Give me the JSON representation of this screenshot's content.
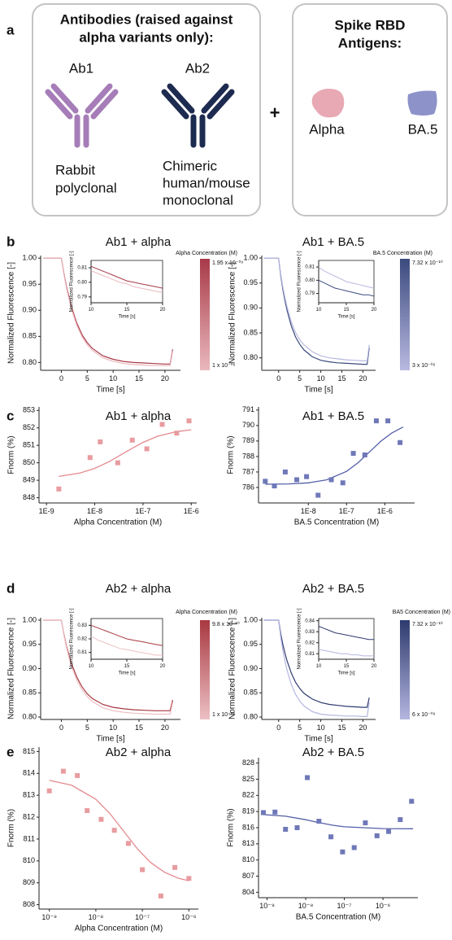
{
  "panel_a": {
    "label": "a",
    "antibodies": {
      "title_lines": [
        "Antibodies (raised against",
        "alpha variants only):"
      ],
      "items": [
        {
          "name": "Ab1",
          "description_lines": [
            "Rabbit",
            "polyclonal"
          ]
        },
        {
          "name": "Ab2",
          "description_lines": [
            "Chimeric",
            "human/mouse",
            "monoclonal"
          ]
        }
      ]
    },
    "plus": "+",
    "antigens": {
      "title_lines": [
        "Spike RBD",
        "Antigens:"
      ],
      "items": [
        "Alpha",
        "BA.5"
      ]
    }
  },
  "panel_labels": [
    "b",
    "c",
    "d",
    "e"
  ],
  "chart_data": [
    {
      "type": "line",
      "title": "Ab1 + alpha",
      "xlabel": "Time [s]",
      "ylabel": "Normalized Fluorescence [-]",
      "x": [
        -3.5,
        -2,
        0,
        0.5,
        1,
        1.5,
        2,
        3,
        4,
        5,
        6,
        8,
        10,
        12,
        14,
        16,
        18,
        20,
        21,
        21.5
      ],
      "series": [
        {
          "name": "1.95 x 10⁻⁰⁹",
          "color": "#a83a48",
          "values": [
            1.0,
            1.0,
            1.0,
            0.97,
            0.945,
            0.925,
            0.905,
            0.875,
            0.853,
            0.838,
            0.827,
            0.813,
            0.806,
            0.802,
            0.8,
            0.799,
            0.798,
            0.797,
            0.797,
            0.825
          ]
        },
        {
          "name": "1 x 10⁻⁰⁶",
          "color": "#eab8bd",
          "values": [
            1.0,
            1.0,
            1.0,
            0.968,
            0.942,
            0.921,
            0.901,
            0.871,
            0.849,
            0.834,
            0.823,
            0.809,
            0.802,
            0.798,
            0.796,
            0.795,
            0.794,
            0.794,
            0.794,
            0.822
          ]
        }
      ],
      "xlim": [
        -4,
        23
      ],
      "ylim": [
        0.785,
        1.005
      ],
      "xticks": [
        0,
        5,
        10,
        15,
        20
      ],
      "yticks": [
        {
          "value": 0.8,
          "label": "0.80"
        },
        0.85,
        {
          "value": 0.9,
          "label": "0.90"
        },
        0.95,
        {
          "value": 1,
          "label": "1.00"
        }
      ],
      "colorbar_title": "Alpha Concentration (M)",
      "inset": {
        "xlabel": "Time [s]",
        "ylabel": "Normalized Fluorescence [-]",
        "x": [
          10,
          11,
          12,
          13,
          14,
          15,
          16,
          17,
          18,
          19,
          20
        ],
        "series": [
          {
            "color": "#a83a48",
            "values": [
              0.811,
              0.809,
              0.807,
              0.805,
              0.803,
              0.801,
              0.8,
              0.799,
              0.798,
              0.797,
              0.796
            ]
          },
          {
            "color": "#eab8bd",
            "values": [
              0.808,
              0.806,
              0.804,
              0.802,
              0.8,
              0.799,
              0.797,
              0.796,
              0.795,
              0.794,
              0.793
            ]
          }
        ],
        "xlim": [
          10,
          20
        ],
        "ylim": [
          0.786,
          0.815
        ],
        "xticks": [
          10,
          15,
          20
        ],
        "yticks": [
          0.79,
          {
            "value": 0.8,
            "label": "0.80"
          },
          0.81
        ]
      }
    },
    {
      "type": "line",
      "title": "Ab1 + BA.5",
      "xlabel": "Time [s]",
      "ylabel": "Normalized Fluorescence [-]",
      "x": [
        -3.5,
        -2,
        0,
        0.5,
        1,
        1.5,
        2,
        3,
        4,
        5,
        6,
        8,
        10,
        12,
        14,
        16,
        18,
        20,
        21,
        21.5
      ],
      "series": [
        {
          "name": "7.32 x 10⁻¹⁰",
          "color": "#3b4a7e",
          "values": [
            1.0,
            1.0,
            1.0,
            0.965,
            0.937,
            0.915,
            0.895,
            0.864,
            0.842,
            0.827,
            0.816,
            0.802,
            0.795,
            0.792,
            0.79,
            0.789,
            0.788,
            0.787,
            0.787,
            0.82
          ]
        },
        {
          "name": "3 x 10⁻⁰⁶",
          "color": "#b8b9e0",
          "values": [
            1.0,
            1.0,
            1.0,
            0.968,
            0.942,
            0.921,
            0.902,
            0.872,
            0.851,
            0.836,
            0.826,
            0.812,
            0.804,
            0.8,
            0.798,
            0.796,
            0.795,
            0.794,
            0.794,
            0.826
          ]
        }
      ],
      "xlim": [
        -4,
        23
      ],
      "ylim": [
        0.775,
        1.005
      ],
      "xticks": [
        0,
        5,
        10,
        15,
        20
      ],
      "yticks": [
        {
          "value": 0.8,
          "label": "0.80"
        },
        0.85,
        {
          "value": 0.9,
          "label": "0.90"
        },
        0.95,
        {
          "value": 1,
          "label": "1.00"
        }
      ],
      "colorbar_title": "BA.5 Concentration (M)",
      "inset": {
        "xlabel": "Time [s]",
        "ylabel": "Normalized Fluorescence [-]",
        "x": [
          10,
          11,
          12,
          13,
          14,
          15,
          16,
          17,
          18,
          19,
          20
        ],
        "series": [
          {
            "color": "#3b4a7e",
            "values": [
              0.8,
              0.798,
              0.796,
              0.794,
              0.793,
              0.792,
              0.791,
              0.79,
              0.789,
              0.789,
              0.788
            ]
          },
          {
            "color": "#b8b9e0",
            "values": [
              0.81,
              0.807,
              0.805,
              0.803,
              0.801,
              0.799,
              0.798,
              0.797,
              0.796,
              0.795,
              0.794
            ]
          }
        ],
        "xlim": [
          10,
          20
        ],
        "ylim": [
          0.783,
          0.815
        ],
        "xticks": [
          10,
          15,
          20
        ],
        "yticks": [
          0.79,
          {
            "value": 0.8,
            "label": "0.80"
          },
          0.81
        ]
      }
    },
    {
      "type": "scatter",
      "title": "Ab1 + alpha",
      "xlabel": "Alpha Concentration (M)",
      "ylabel": "Fnorm (%)",
      "xlog": true,
      "xlim": [
        7e-10,
        1.3e-06
      ],
      "ylim": [
        847.7,
        853.2
      ],
      "xticks": [
        {
          "value": 1e-09,
          "label": "1E-9"
        },
        {
          "value": 1e-08,
          "label": "1E-8"
        },
        {
          "value": 1e-07,
          "label": "1E-7"
        },
        {
          "value": 1e-06,
          "label": "1E-6"
        }
      ],
      "yticks": [
        848,
        849,
        850,
        851,
        852,
        853
      ],
      "points": {
        "color": "#e89ca0",
        "x": [
          1.8e-09,
          8e-09,
          1.3e-08,
          3e-08,
          6e-08,
          1.2e-07,
          2.5e-07,
          5e-07,
          9e-07
        ],
        "values": [
          848.5,
          850.3,
          851.2,
          850.0,
          851.3,
          850.8,
          852.2,
          851.7,
          852.4
        ]
      },
      "fit": {
        "color": "#e58a8e",
        "x": [
          1.8e-09,
          5e-09,
          1e-08,
          2e-08,
          5e-08,
          1e-07,
          2e-07,
          5e-07,
          1e-06
        ],
        "values": [
          849.22,
          849.42,
          849.68,
          850.07,
          850.71,
          851.17,
          851.52,
          851.79,
          851.89
        ]
      }
    },
    {
      "type": "scatter",
      "title": "Ab1 + BA.5",
      "xlabel": "BA.5 Concentration (M)",
      "ylabel": "Fnorm (%)",
      "xlog": true,
      "xlim": [
        5e-10,
        6e-06
      ],
      "ylim": [
        785,
        791.2
      ],
      "xticks": [
        {
          "value": 1e-08,
          "label": "1E-8"
        },
        {
          "value": 1e-07,
          "label": "1E-7"
        },
        {
          "value": 1e-06,
          "label": "1E-6"
        }
      ],
      "yticks": [
        786,
        787,
        788,
        789,
        790,
        791
      ],
      "points": {
        "color": "#6f78b8",
        "x": [
          7.5e-10,
          1.3e-09,
          2.5e-09,
          5e-09,
          9e-09,
          1.8e-08,
          4e-08,
          8e-08,
          1.5e-07,
          3e-07,
          6e-07,
          1.2e-06,
          2.5e-06
        ],
        "values": [
          786.4,
          786.1,
          787.0,
          786.5,
          786.7,
          785.5,
          786.5,
          786.3,
          788.2,
          788.1,
          790.3,
          790.3,
          788.9
        ]
      },
      "fit": {
        "color": "#5560a8",
        "x": [
          7.5e-10,
          3e-09,
          1e-08,
          3e-08,
          1e-07,
          2e-07,
          4e-07,
          8e-07,
          1.5e-06,
          3e-06
        ],
        "values": [
          786.21,
          786.23,
          786.3,
          786.49,
          787.04,
          787.6,
          788.3,
          789.0,
          789.51,
          789.9
        ]
      }
    },
    {
      "type": "line",
      "title": "Ab2 + alpha",
      "xlabel": "Time [s]",
      "ylabel": "Normalized Fluorescence [-]",
      "x": [
        -3.5,
        -2,
        0,
        0.5,
        1,
        1.5,
        2,
        3,
        4,
        5,
        6,
        8,
        10,
        12,
        14,
        16,
        18,
        20,
        21,
        21.5
      ],
      "series": [
        {
          "name": "9.8 x 10⁻¹⁰",
          "color": "#a83840",
          "values": [
            1.0,
            1.0,
            1.0,
            0.97,
            0.946,
            0.927,
            0.909,
            0.882,
            0.862,
            0.848,
            0.838,
            0.826,
            0.82,
            0.817,
            0.815,
            0.814,
            0.813,
            0.813,
            0.813,
            0.835
          ]
        },
        {
          "name": "1 x 10⁻⁰⁶",
          "color": "#ecc0c4",
          "values": [
            1.0,
            1.0,
            1.0,
            0.968,
            0.943,
            0.922,
            0.904,
            0.876,
            0.856,
            0.842,
            0.832,
            0.819,
            0.813,
            0.81,
            0.808,
            0.807,
            0.806,
            0.806,
            0.806,
            0.83
          ]
        }
      ],
      "xlim": [
        -4,
        23
      ],
      "ylim": [
        0.795,
        1.005
      ],
      "xticks": [
        0,
        5,
        10,
        15,
        20
      ],
      "yticks": [
        {
          "value": 0.8,
          "label": "0.80"
        },
        0.85,
        {
          "value": 0.9,
          "label": "0.90"
        },
        0.95,
        {
          "value": 1,
          "label": "1.00"
        }
      ],
      "colorbar_title": "Alpha Concentration (M)",
      "inset": {
        "xlabel": "Time [s]",
        "ylabel": "Normalized Fluorescence [-]",
        "x": [
          10,
          11,
          12,
          13,
          14,
          15,
          16,
          17,
          18,
          19,
          20
        ],
        "series": [
          {
            "color": "#a83840",
            "values": [
              0.83,
              0.828,
              0.826,
              0.824,
              0.822,
              0.82,
              0.819,
              0.818,
              0.817,
              0.816,
              0.815
            ]
          },
          {
            "color": "#ecc0c4",
            "values": [
              0.822,
              0.819,
              0.817,
              0.815,
              0.813,
              0.812,
              0.811,
              0.81,
              0.809,
              0.808,
              0.808
            ]
          }
        ],
        "xlim": [
          10,
          20
        ],
        "ylim": [
          0.805,
          0.835
        ],
        "xticks": [
          10,
          15,
          20
        ],
        "yticks": [
          0.81,
          0.82,
          0.83
        ]
      }
    },
    {
      "type": "line",
      "title": "Ab2 + BA.5",
      "xlabel": "Time [s]",
      "ylabel": "Normalized Fluorescence [-]",
      "x": [
        -3.5,
        -2,
        0,
        0.5,
        1,
        1.5,
        2,
        3,
        4,
        5,
        6,
        8,
        10,
        12,
        14,
        16,
        18,
        20,
        21,
        21.5
      ],
      "series": [
        {
          "name": "7.32 x 10⁻¹⁰",
          "color": "#2e3a6e",
          "values": [
            1.0,
            1.0,
            1.0,
            0.972,
            0.95,
            0.932,
            0.916,
            0.891,
            0.872,
            0.859,
            0.849,
            0.837,
            0.83,
            0.826,
            0.824,
            0.822,
            0.821,
            0.82,
            0.82,
            0.84
          ]
        },
        {
          "name": "6 x 10⁻⁰⁶",
          "color": "#b4b6df",
          "values": [
            1.0,
            1.0,
            1.0,
            0.965,
            0.938,
            0.916,
            0.897,
            0.867,
            0.847,
            0.833,
            0.823,
            0.811,
            0.806,
            0.804,
            0.803,
            0.802,
            0.802,
            0.801,
            0.801,
            0.83
          ]
        }
      ],
      "xlim": [
        -4,
        23
      ],
      "ylim": [
        0.795,
        1.005
      ],
      "xticks": [
        0,
        5,
        10,
        15,
        20
      ],
      "yticks": [
        {
          "value": 0.8,
          "label": "0.80"
        },
        0.85,
        {
          "value": 0.9,
          "label": "0.90"
        },
        0.95,
        {
          "value": 1,
          "label": "1.00"
        }
      ],
      "colorbar_title": "BA5 Concentration (M)",
      "inset": {
        "xlabel": "Time [s]",
        "ylabel": "Normalized Fluorescence [-]",
        "x": [
          10,
          11,
          12,
          13,
          14,
          15,
          16,
          17,
          18,
          19,
          20
        ],
        "series": [
          {
            "color": "#2e3a6e",
            "values": [
              0.835,
              0.833,
              0.831,
              0.829,
              0.828,
              0.827,
              0.826,
              0.825,
              0.824,
              0.823,
              0.823
            ]
          },
          {
            "color": "#b4b6df",
            "values": [
              0.814,
              0.813,
              0.812,
              0.811,
              0.81,
              0.81,
              0.809,
              0.809,
              0.808,
              0.808,
              0.808
            ]
          }
        ],
        "xlim": [
          10,
          20
        ],
        "ylim": [
          0.805,
          0.842
        ],
        "xticks": [
          10,
          15,
          20
        ],
        "yticks": [
          0.81,
          0.82,
          0.83,
          0.84
        ]
      }
    },
    {
      "type": "scatter",
      "title": "Ab2 + alpha",
      "xlabel": "Alpha Concentration (M)",
      "ylabel": "Fnorm (%)",
      "xlog": true,
      "xlim": [
        6e-10,
        1.6e-06
      ],
      "ylim": [
        807.8,
        815.2
      ],
      "xticks": [
        {
          "value": 1e-09,
          "label": "10⁻⁹"
        },
        {
          "value": 1e-08,
          "label": "10⁻⁸"
        },
        {
          "value": 1e-07,
          "label": "10⁻⁷"
        },
        {
          "value": 1e-06,
          "label": "10⁻⁶"
        }
      ],
      "yticks": [
        808,
        809,
        810,
        811,
        812,
        813,
        814,
        815
      ],
      "points": {
        "color": "#e89ca0",
        "x": [
          1e-09,
          2e-09,
          4e-09,
          6.5e-09,
          1.3e-08,
          2.5e-08,
          5e-08,
          1e-07,
          2.5e-07,
          5e-07,
          1e-06
        ],
        "values": [
          813.2,
          814.1,
          813.9,
          812.3,
          811.9,
          811.4,
          810.8,
          809.6,
          808.4,
          809.7,
          809.2
        ]
      },
      "fit": {
        "color": "#e58a8e",
        "x": [
          1e-09,
          3e-09,
          1e-08,
          2e-08,
          4e-08,
          8e-08,
          1.5e-07,
          3e-07,
          6e-07,
          1e-06
        ],
        "values": [
          813.68,
          813.46,
          812.82,
          812.17,
          811.35,
          810.53,
          809.93,
          809.48,
          809.21,
          809.09
        ]
      }
    },
    {
      "type": "scatter",
      "title": "Ab2 + BA.5",
      "xlabel": "BA.5 Concentration (M)",
      "ylabel": "Fnorm (%)",
      "xlog": true,
      "xlim": [
        6e-10,
        8e-06
      ],
      "ylim": [
        803,
        829
      ],
      "xticks": [
        {
          "value": 1e-09,
          "label": "10⁻⁹"
        },
        {
          "value": 1e-08,
          "label": "10⁻⁸"
        },
        {
          "value": 1e-07,
          "label": "10⁻⁷"
        },
        {
          "value": 1e-06,
          "label": "10⁻⁶"
        }
      ],
      "yticks": [
        804,
        807,
        810,
        813,
        816,
        819,
        822,
        825,
        828
      ],
      "points": {
        "color": "#6f78b8",
        "x": [
          8e-10,
          1.6e-09,
          3e-09,
          6e-09,
          1.1e-08,
          2.2e-08,
          4.5e-08,
          9e-08,
          1.8e-07,
          3.5e-07,
          7e-07,
          1.4e-06,
          2.8e-06,
          5.5e-06
        ],
        "values": [
          818.8,
          818.9,
          815.7,
          816.0,
          825.3,
          817.2,
          814.3,
          811.5,
          812.3,
          816.9,
          814.5,
          815.3,
          817.5,
          820.9
        ]
      },
      "fit": {
        "color": "#5560a8",
        "x": [
          7e-10,
          3e-09,
          1e-08,
          2e-08,
          5e-08,
          1e-07,
          1e-06,
          6e-06
        ],
        "values": [
          818.47,
          818.13,
          817.48,
          817.0,
          816.45,
          816.16,
          815.84,
          815.81
        ]
      }
    }
  ]
}
